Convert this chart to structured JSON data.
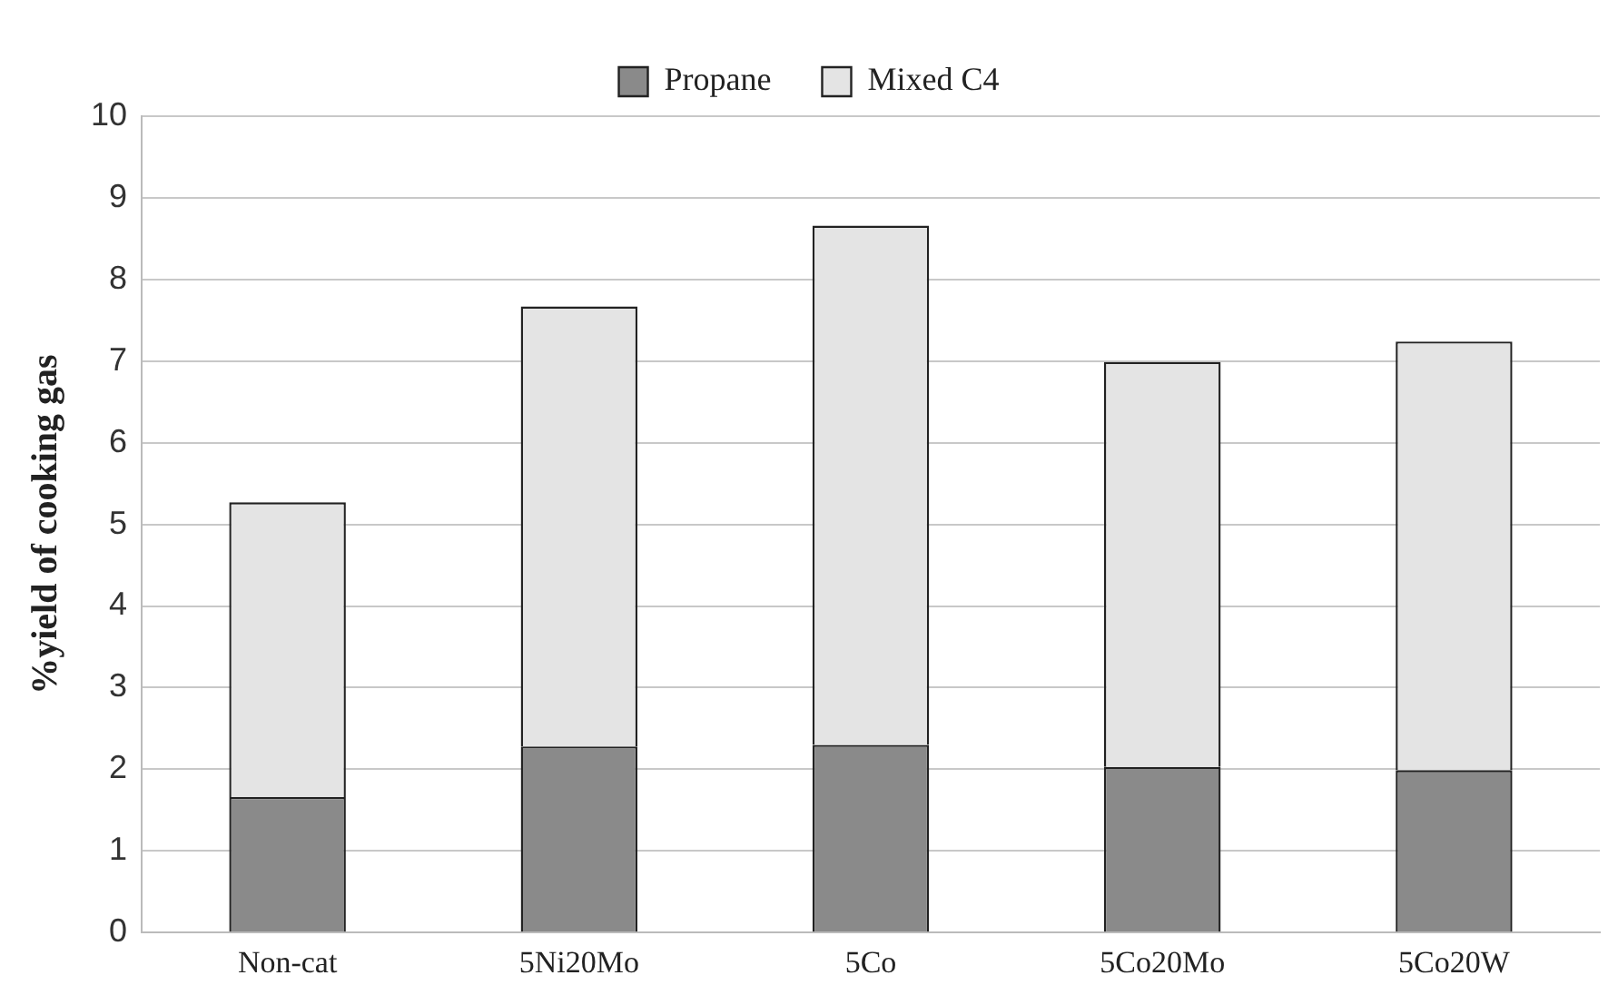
{
  "chart_data": {
    "type": "bar",
    "stacked": true,
    "ylabel": "%yield of cooking gas",
    "categories": [
      "Non-cat",
      "5Ni20Mo",
      "5Co",
      "5Co20Mo",
      "5Co20W"
    ],
    "series": [
      {
        "name": "Propane",
        "color": "#8a8a8a",
        "values": [
          1.66,
          2.28,
          2.3,
          2.03,
          1.99
        ]
      },
      {
        "name": "Mixed C4",
        "color": "#e4e4e4",
        "values": [
          3.61,
          5.39,
          6.36,
          4.96,
          5.25
        ]
      }
    ],
    "ylim": [
      0,
      10
    ],
    "yticks": [
      0,
      1,
      2,
      3,
      4,
      5,
      6,
      7,
      8,
      9,
      10
    ],
    "grid": "y",
    "legend": "top"
  }
}
